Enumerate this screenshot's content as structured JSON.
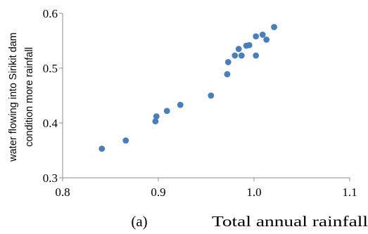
{
  "chart_data": {
    "type": "scatter",
    "panel_label": "(a)",
    "xlabel": "Total annual rainfall",
    "ylabel_lines": [
      "water flowing into Sirikit dam",
      "condition more rainfall"
    ],
    "xlim": [
      0.8,
      1.1
    ],
    "ylim": [
      0.3,
      0.6
    ],
    "x_ticks": [
      "0.8",
      "0.9",
      "1.0",
      "1.1"
    ],
    "y_ticks": [
      "0.3",
      "0.4",
      "0.5",
      "0.6"
    ],
    "grid": false,
    "marker_color": "#4a7ebb",
    "points": [
      {
        "x": 0.841,
        "y": 0.353
      },
      {
        "x": 0.866,
        "y": 0.368
      },
      {
        "x": 0.897,
        "y": 0.403
      },
      {
        "x": 0.898,
        "y": 0.412
      },
      {
        "x": 0.909,
        "y": 0.422
      },
      {
        "x": 0.923,
        "y": 0.433
      },
      {
        "x": 0.955,
        "y": 0.45
      },
      {
        "x": 0.972,
        "y": 0.489
      },
      {
        "x": 0.973,
        "y": 0.511
      },
      {
        "x": 0.98,
        "y": 0.523
      },
      {
        "x": 0.984,
        "y": 0.535
      },
      {
        "x": 0.987,
        "y": 0.523
      },
      {
        "x": 0.992,
        "y": 0.541
      },
      {
        "x": 0.995,
        "y": 0.542
      },
      {
        "x": 1.002,
        "y": 0.558
      },
      {
        "x": 1.002,
        "y": 0.523
      },
      {
        "x": 1.009,
        "y": 0.561
      },
      {
        "x": 1.013,
        "y": 0.552
      },
      {
        "x": 1.021,
        "y": 0.575
      }
    ]
  }
}
